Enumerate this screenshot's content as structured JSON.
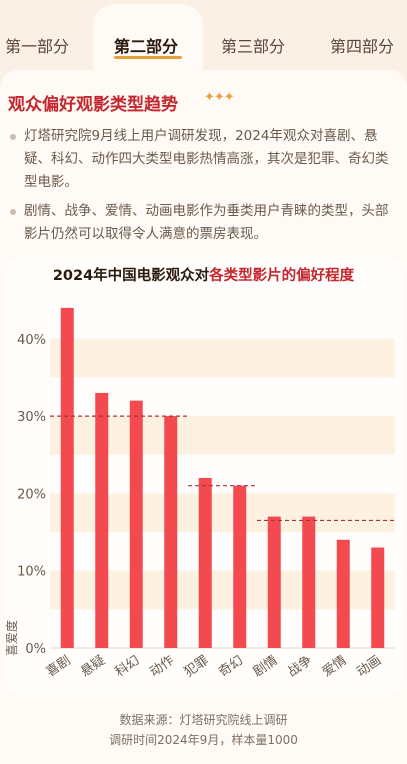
{
  "tabs": [
    {
      "label": "第一部分",
      "active": false
    },
    {
      "label": "第二部分",
      "active": true
    },
    {
      "label": "第三部分",
      "active": false
    },
    {
      "label": "第四部分",
      "active": false
    }
  ],
  "section": {
    "title": "观众偏好观影类型趋势",
    "decoration": "✦✦✦",
    "bullets": [
      "灯塔研究院9月线上用户调研发现，2024年观众对喜剧、悬疑、科幻、动作四大类型电影热情高涨，其次是犯罪、奇幻类型电影。",
      "剧情、战争、爱情、动画电影作为垂类用户青睐的类型，头部影片仍然可以取得令人满意的票房表现。"
    ]
  },
  "chart_data": {
    "type": "bar",
    "title_prefix": "2024年中国电影观众对",
    "title_highlight": "各类型影片的偏好程度",
    "ylabel": "喜爱度",
    "ylim": [
      0,
      45
    ],
    "yticks": [
      "0%",
      "10%",
      "20%",
      "30%",
      "40%"
    ],
    "ytick_values": [
      0,
      10,
      20,
      30,
      40
    ],
    "categories": [
      "喜剧",
      "悬疑",
      "科幻",
      "动作",
      "犯罪",
      "奇幻",
      "剧情",
      "战争",
      "爱情",
      "动画"
    ],
    "values": [
      44,
      33,
      32,
      30,
      22,
      21,
      17,
      17,
      14,
      13
    ],
    "bar_color": "#f24a4f",
    "reference_lines": [
      {
        "value": 30,
        "from": 0,
        "to": 3
      },
      {
        "value": 21,
        "from": 4,
        "to": 5
      },
      {
        "value": 16.5,
        "from": 6,
        "to": 9
      }
    ]
  },
  "source": {
    "line1": "数据来源：灯塔研究院线上调研",
    "line2": "调研时间2024年9月，样本量1000"
  }
}
